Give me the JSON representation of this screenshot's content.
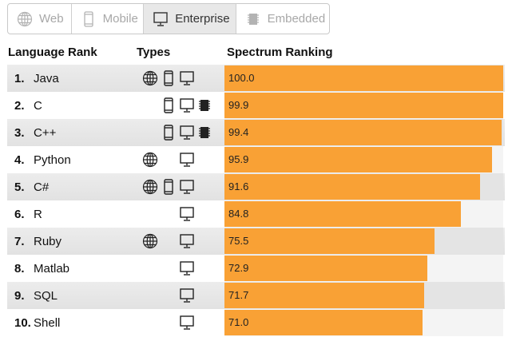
{
  "tabs": [
    {
      "label": "Web",
      "icon": "globe-icon",
      "active": false
    },
    {
      "label": "Mobile",
      "icon": "mobile-icon",
      "active": false
    },
    {
      "label": "Enterprise",
      "icon": "monitor-icon",
      "active": true
    },
    {
      "label": "Embedded",
      "icon": "chip-icon",
      "active": false
    }
  ],
  "headers": {
    "language_rank": "Language Rank",
    "types": "Types",
    "spectrum_ranking": "Spectrum Ranking"
  },
  "accent_color": "#f9a135",
  "rows": [
    {
      "rank": "1.",
      "language": "Java",
      "types": [
        "web",
        "mobile",
        "enterprise"
      ],
      "score": 100.0,
      "label": "100.0"
    },
    {
      "rank": "2.",
      "language": "C",
      "types": [
        "mobile",
        "enterprise",
        "embedded"
      ],
      "score": 99.9,
      "label": "99.9"
    },
    {
      "rank": "3.",
      "language": "C++",
      "types": [
        "mobile",
        "enterprise",
        "embedded"
      ],
      "score": 99.4,
      "label": "99.4"
    },
    {
      "rank": "4.",
      "language": "Python",
      "types": [
        "web",
        "enterprise"
      ],
      "score": 95.9,
      "label": "95.9"
    },
    {
      "rank": "5.",
      "language": "C#",
      "types": [
        "web",
        "mobile",
        "enterprise"
      ],
      "score": 91.6,
      "label": "91.6"
    },
    {
      "rank": "6.",
      "language": "R",
      "types": [
        "enterprise"
      ],
      "score": 84.8,
      "label": "84.8"
    },
    {
      "rank": "7.",
      "language": "Ruby",
      "types": [
        "web",
        "enterprise"
      ],
      "score": 75.5,
      "label": "75.5"
    },
    {
      "rank": "8.",
      "language": "Matlab",
      "types": [
        "enterprise"
      ],
      "score": 72.9,
      "label": "72.9"
    },
    {
      "rank": "9.",
      "language": "SQL",
      "types": [
        "enterprise"
      ],
      "score": 71.7,
      "label": "71.7"
    },
    {
      "rank": "10.",
      "language": "Shell",
      "types": [
        "enterprise"
      ],
      "score": 71.0,
      "label": "71.0"
    }
  ]
}
